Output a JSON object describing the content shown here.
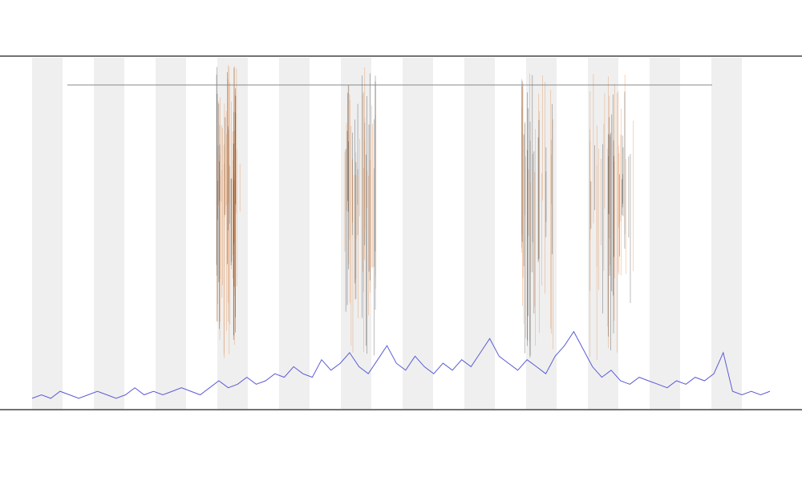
{
  "chart_data": {
    "type": "line",
    "color": "#5b5bd6",
    "values": [
      3,
      4,
      3,
      5,
      4,
      3,
      4,
      5,
      4,
      3,
      4,
      6,
      4,
      5,
      4,
      5,
      6,
      5,
      4,
      6,
      8,
      6,
      7,
      9,
      7,
      8,
      10,
      9,
      12,
      10,
      9,
      14,
      11,
      13,
      16,
      12,
      10,
      14,
      18,
      13,
      11,
      15,
      12,
      10,
      13,
      11,
      14,
      12,
      16,
      20,
      15,
      13,
      11,
      14,
      12,
      10,
      15,
      18,
      22,
      17,
      12,
      9,
      11,
      8,
      7,
      9,
      8,
      7,
      6,
      8,
      7,
      9,
      8,
      10,
      16,
      5,
      4,
      5,
      4,
      5
    ],
    "ylim": [
      0,
      100
    ]
  }
}
